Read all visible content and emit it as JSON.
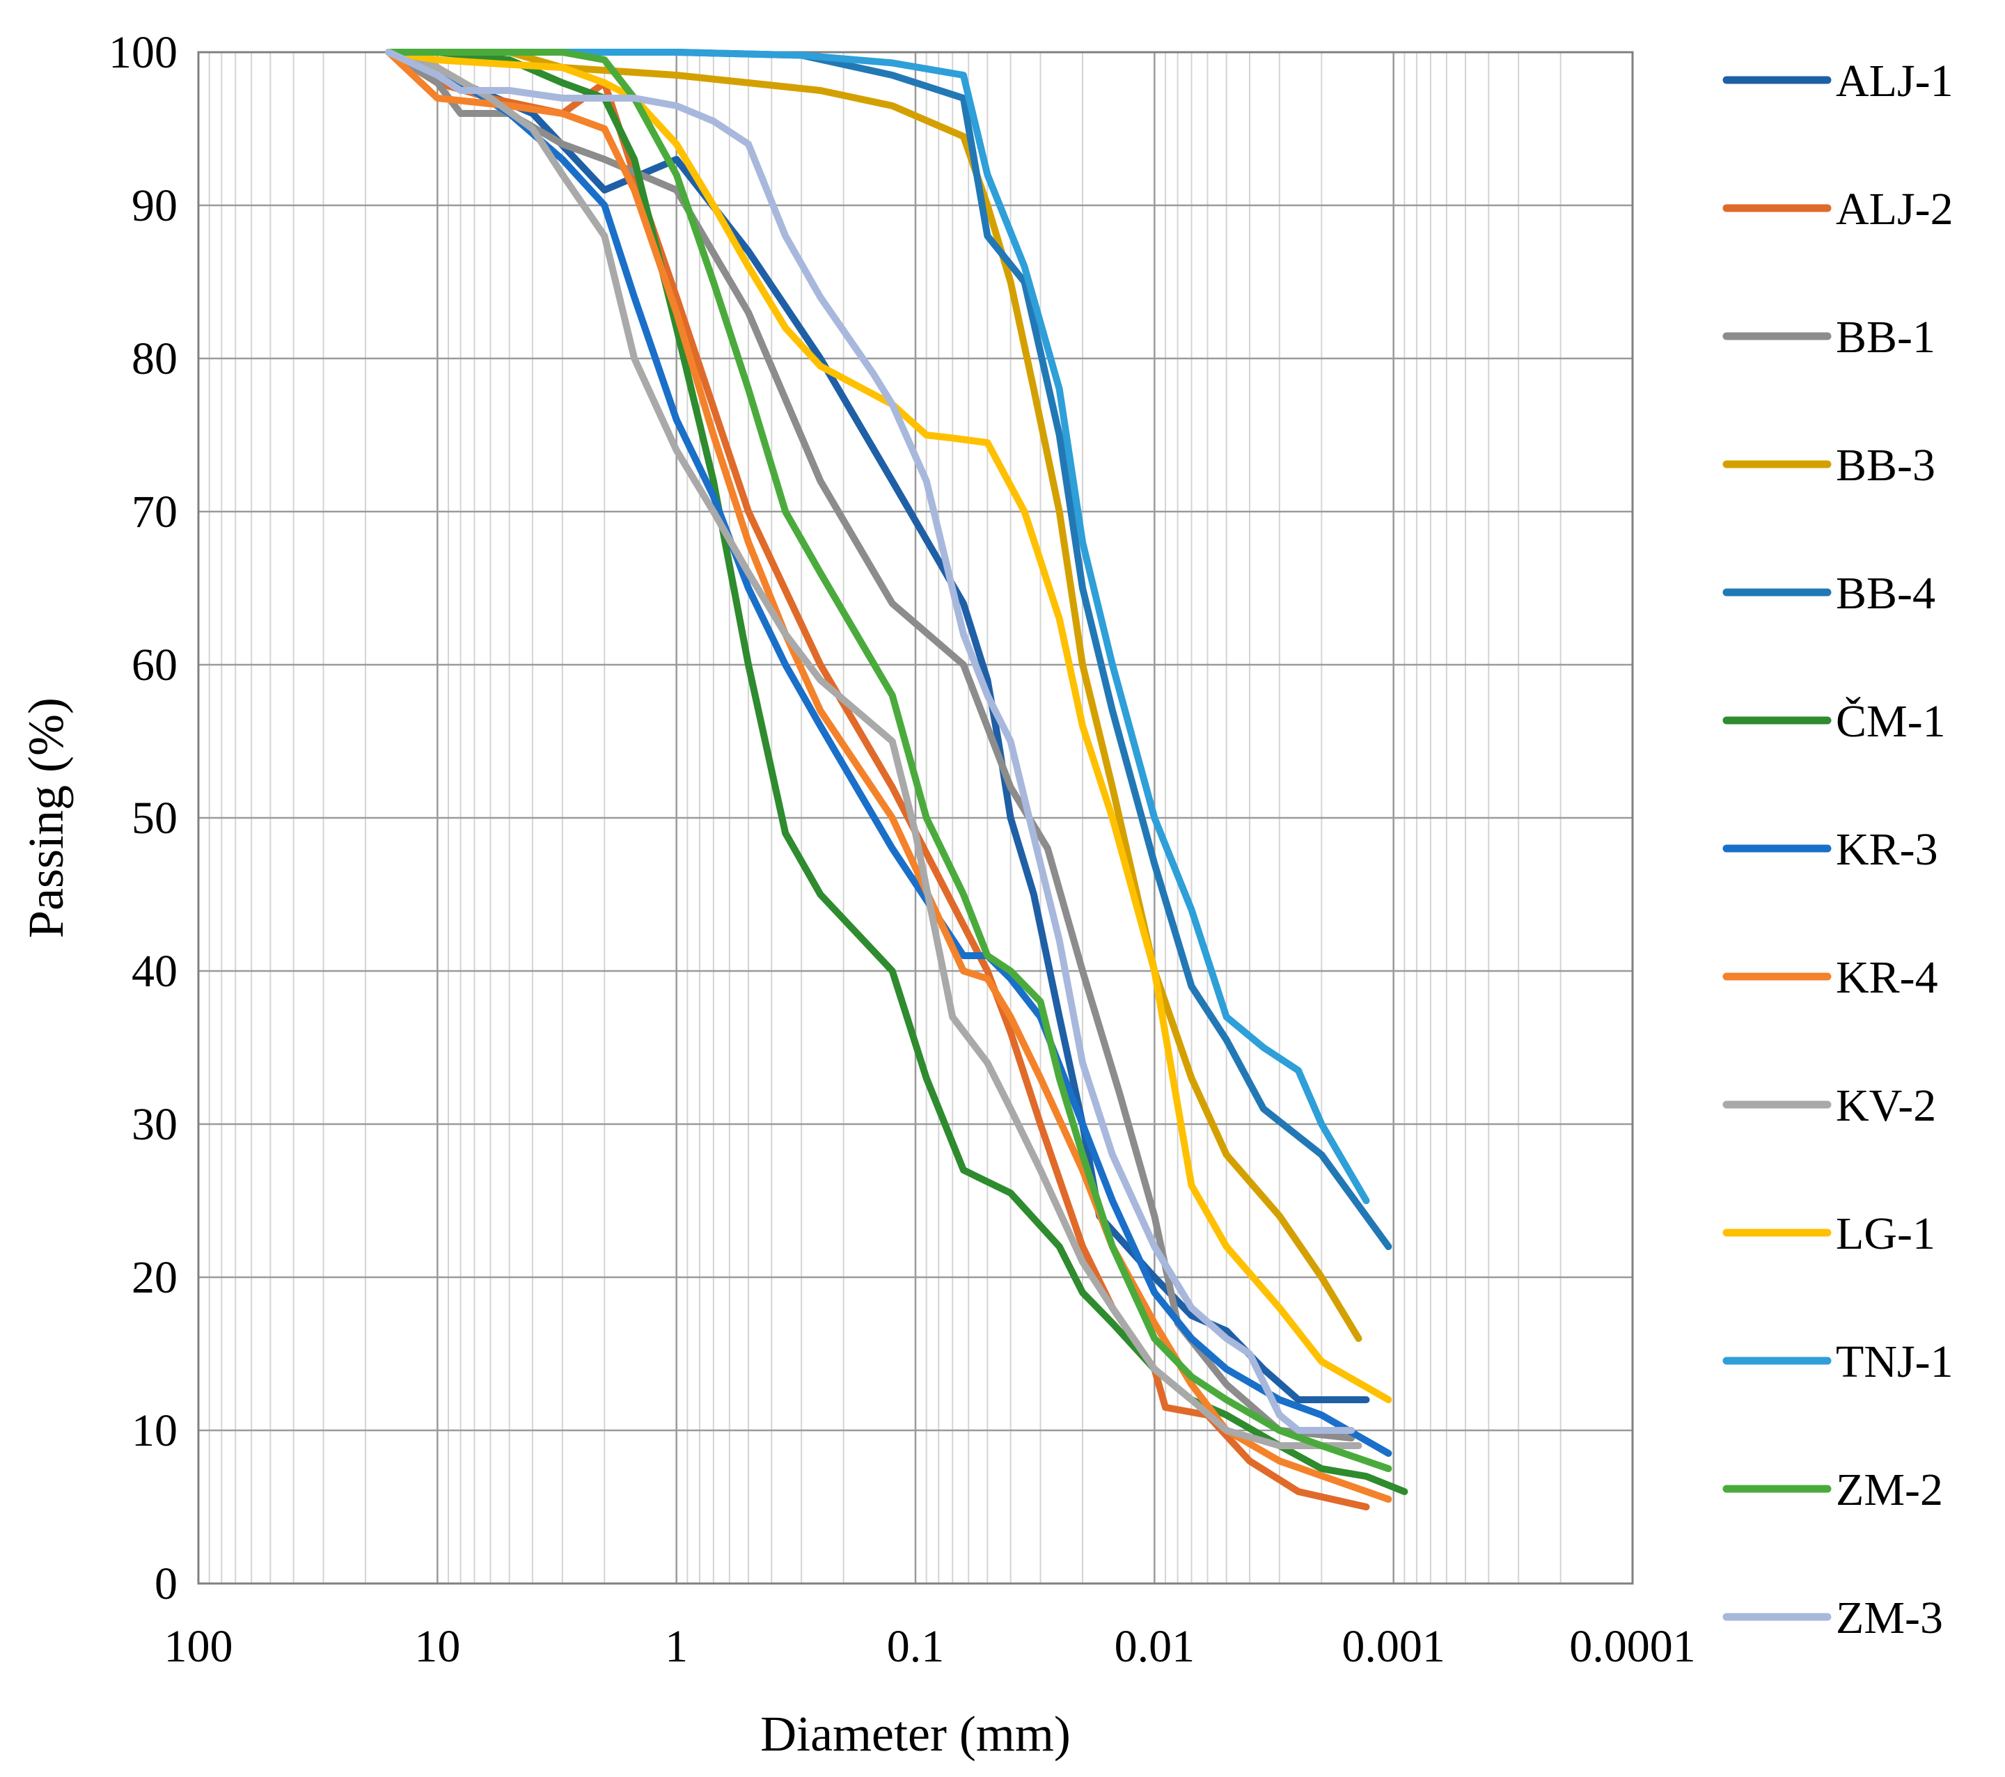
{
  "chart_data": {
    "type": "line",
    "title": "",
    "xlabel": "Diameter (mm)",
    "ylabel": "Passing (%)",
    "x_scale": "log",
    "x_reversed": true,
    "xlim": [
      100,
      0.0001
    ],
    "ylim": [
      0,
      100
    ],
    "x_ticks": [
      "100",
      "10",
      "1",
      "0.1",
      "0.01",
      "0.001",
      "0.0001"
    ],
    "y_ticks": [
      "0",
      "10",
      "20",
      "30",
      "40",
      "50",
      "60",
      "70",
      "80",
      "90",
      "100"
    ],
    "grid": true,
    "legend_position": "right",
    "series": [
      {
        "name": "ALJ-1",
        "color": "#1f5fa6",
        "points": [
          [
            16,
            100
          ],
          [
            10,
            99
          ],
          [
            8,
            98
          ],
          [
            4,
            96
          ],
          [
            2,
            91
          ],
          [
            1,
            93
          ],
          [
            0.5,
            87
          ],
          [
            0.25,
            80
          ],
          [
            0.125,
            72
          ],
          [
            0.063,
            64
          ],
          [
            0.05,
            59
          ],
          [
            0.045,
            55
          ],
          [
            0.04,
            50
          ],
          [
            0.032,
            45
          ],
          [
            0.025,
            37
          ],
          [
            0.02,
            30
          ],
          [
            0.017,
            24
          ],
          [
            0.01,
            20
          ],
          [
            0.007,
            17.5
          ],
          [
            0.005,
            16.5
          ],
          [
            0.0035,
            14
          ],
          [
            0.0025,
            12
          ],
          [
            0.0013,
            12
          ]
        ]
      },
      {
        "name": "ALJ-2",
        "color": "#e06a2a",
        "points": [
          [
            16,
            100
          ],
          [
            10,
            98
          ],
          [
            6,
            97
          ],
          [
            3,
            96
          ],
          [
            2,
            98
          ],
          [
            1.5,
            92
          ],
          [
            1,
            84
          ],
          [
            0.5,
            70
          ],
          [
            0.25,
            60
          ],
          [
            0.125,
            52
          ],
          [
            0.063,
            43
          ],
          [
            0.05,
            40
          ],
          [
            0.04,
            36
          ],
          [
            0.03,
            30
          ],
          [
            0.02,
            22
          ],
          [
            0.015,
            18
          ],
          [
            0.01,
            14
          ],
          [
            0.009,
            11.5
          ],
          [
            0.006,
            11
          ],
          [
            0.004,
            8
          ],
          [
            0.0025,
            6
          ],
          [
            0.0013,
            5
          ]
        ]
      },
      {
        "name": "BB-1",
        "color": "#8c8c8c",
        "points": [
          [
            16,
            100
          ],
          [
            10,
            98
          ],
          [
            8,
            96
          ],
          [
            5,
            96
          ],
          [
            3,
            94
          ],
          [
            2,
            93
          ],
          [
            1,
            91
          ],
          [
            0.5,
            83
          ],
          [
            0.25,
            72
          ],
          [
            0.125,
            64
          ],
          [
            0.063,
            60
          ],
          [
            0.04,
            52
          ],
          [
            0.028,
            48
          ],
          [
            0.02,
            40
          ],
          [
            0.014,
            32
          ],
          [
            0.01,
            24
          ],
          [
            0.008,
            17
          ],
          [
            0.005,
            13
          ],
          [
            0.003,
            10
          ],
          [
            0.0015,
            9.5
          ]
        ]
      },
      {
        "name": "BB-3",
        "color": "#d4a000",
        "points": [
          [
            16,
            100
          ],
          [
            5,
            100
          ],
          [
            3,
            99
          ],
          [
            1,
            98.5
          ],
          [
            0.5,
            98
          ],
          [
            0.25,
            97.5
          ],
          [
            0.125,
            96.5
          ],
          [
            0.063,
            94.5
          ],
          [
            0.05,
            90
          ],
          [
            0.04,
            85
          ],
          [
            0.032,
            78
          ],
          [
            0.025,
            70
          ],
          [
            0.02,
            60
          ],
          [
            0.015,
            52
          ],
          [
            0.01,
            40
          ],
          [
            0.007,
            33
          ],
          [
            0.005,
            28
          ],
          [
            0.003,
            24
          ],
          [
            0.002,
            20
          ],
          [
            0.0014,
            16
          ]
        ]
      },
      {
        "name": "BB-4",
        "color": "#2278b5",
        "points": [
          [
            16,
            100
          ],
          [
            5,
            100
          ],
          [
            1,
            100
          ],
          [
            0.3,
            99.8
          ],
          [
            0.125,
            98.5
          ],
          [
            0.063,
            97
          ],
          [
            0.05,
            88
          ],
          [
            0.035,
            85
          ],
          [
            0.025,
            75
          ],
          [
            0.02,
            65
          ],
          [
            0.015,
            57
          ],
          [
            0.01,
            47
          ],
          [
            0.007,
            39
          ],
          [
            0.005,
            35.5
          ],
          [
            0.0035,
            31
          ],
          [
            0.002,
            28
          ],
          [
            0.00105,
            22
          ]
        ]
      },
      {
        "name": "ČM-1",
        "color": "#2e8b2e",
        "points": [
          [
            16,
            100
          ],
          [
            10,
            100
          ],
          [
            5,
            99.5
          ],
          [
            3,
            98
          ],
          [
            2,
            97
          ],
          [
            1.5,
            93
          ],
          [
            1,
            82
          ],
          [
            0.7,
            72
          ],
          [
            0.5,
            60
          ],
          [
            0.35,
            49
          ],
          [
            0.25,
            45
          ],
          [
            0.125,
            40
          ],
          [
            0.09,
            33
          ],
          [
            0.063,
            27
          ],
          [
            0.04,
            25.5
          ],
          [
            0.025,
            22
          ],
          [
            0.02,
            19
          ],
          [
            0.015,
            17
          ],
          [
            0.01,
            14
          ],
          [
            0.007,
            12
          ],
          [
            0.005,
            11
          ],
          [
            0.003,
            9
          ],
          [
            0.002,
            7.5
          ],
          [
            0.0013,
            7
          ],
          [
            0.0009,
            6
          ]
        ]
      },
      {
        "name": "KR-3",
        "color": "#1a6fc9",
        "points": [
          [
            16,
            100
          ],
          [
            8,
            98
          ],
          [
            5,
            96
          ],
          [
            3,
            93
          ],
          [
            2,
            90
          ],
          [
            1.5,
            84
          ],
          [
            1,
            76
          ],
          [
            0.7,
            71
          ],
          [
            0.5,
            65
          ],
          [
            0.35,
            60
          ],
          [
            0.25,
            56
          ],
          [
            0.125,
            48
          ],
          [
            0.063,
            41
          ],
          [
            0.05,
            41
          ],
          [
            0.04,
            39.5
          ],
          [
            0.03,
            37
          ],
          [
            0.02,
            30
          ],
          [
            0.015,
            25
          ],
          [
            0.01,
            19
          ],
          [
            0.007,
            16
          ],
          [
            0.005,
            14
          ],
          [
            0.003,
            12
          ],
          [
            0.002,
            11
          ],
          [
            0.00105,
            8.5
          ]
        ]
      },
      {
        "name": "KR-4",
        "color": "#f4822a",
        "points": [
          [
            16,
            100
          ],
          [
            10,
            97
          ],
          [
            5,
            96.5
          ],
          [
            3,
            96
          ],
          [
            2,
            95
          ],
          [
            1.5,
            91
          ],
          [
            1,
            83
          ],
          [
            0.7,
            75
          ],
          [
            0.5,
            68
          ],
          [
            0.35,
            62
          ],
          [
            0.25,
            57
          ],
          [
            0.125,
            50
          ],
          [
            0.063,
            40
          ],
          [
            0.05,
            39.5
          ],
          [
            0.04,
            37
          ],
          [
            0.03,
            33
          ],
          [
            0.02,
            27
          ],
          [
            0.015,
            22
          ],
          [
            0.01,
            17
          ],
          [
            0.007,
            13
          ],
          [
            0.005,
            10
          ],
          [
            0.003,
            8
          ],
          [
            0.00105,
            5.5
          ]
        ]
      },
      {
        "name": "KV-2",
        "color": "#a9a9a9",
        "points": [
          [
            16,
            100
          ],
          [
            10,
            99
          ],
          [
            6,
            97
          ],
          [
            4,
            95
          ],
          [
            3,
            92
          ],
          [
            2,
            88
          ],
          [
            1.5,
            80
          ],
          [
            1,
            74
          ],
          [
            0.7,
            70
          ],
          [
            0.5,
            66
          ],
          [
            0.35,
            62
          ],
          [
            0.25,
            59
          ],
          [
            0.125,
            55
          ],
          [
            0.1,
            49
          ],
          [
            0.07,
            37
          ],
          [
            0.05,
            34
          ],
          [
            0.04,
            31
          ],
          [
            0.03,
            27
          ],
          [
            0.02,
            21
          ],
          [
            0.015,
            18
          ],
          [
            0.01,
            14
          ],
          [
            0.007,
            12
          ],
          [
            0.005,
            10
          ],
          [
            0.003,
            9
          ],
          [
            0.0014,
            9
          ]
        ]
      },
      {
        "name": "LG-1",
        "color": "#ffc000",
        "points": [
          [
            16,
            100
          ],
          [
            10,
            99.5
          ],
          [
            5,
            99.2
          ],
          [
            3,
            99
          ],
          [
            2,
            98
          ],
          [
            1.5,
            97
          ],
          [
            1,
            94
          ],
          [
            0.7,
            90
          ],
          [
            0.5,
            86
          ],
          [
            0.35,
            82
          ],
          [
            0.25,
            79.5
          ],
          [
            0.125,
            77
          ],
          [
            0.09,
            75
          ],
          [
            0.07,
            74.8
          ],
          [
            0.05,
            74.5
          ],
          [
            0.035,
            70
          ],
          [
            0.025,
            63
          ],
          [
            0.02,
            56
          ],
          [
            0.015,
            50
          ],
          [
            0.01,
            40
          ],
          [
            0.007,
            26
          ],
          [
            0.005,
            22
          ],
          [
            0.003,
            18
          ],
          [
            0.002,
            14.5
          ],
          [
            0.00105,
            12
          ]
        ]
      },
      {
        "name": "TNJ-1",
        "color": "#2e9fd8",
        "points": [
          [
            16,
            100
          ],
          [
            5,
            100
          ],
          [
            1,
            100
          ],
          [
            0.3,
            99.8
          ],
          [
            0.125,
            99.3
          ],
          [
            0.063,
            98.5
          ],
          [
            0.05,
            92
          ],
          [
            0.035,
            86
          ],
          [
            0.025,
            78
          ],
          [
            0.02,
            68
          ],
          [
            0.015,
            60
          ],
          [
            0.01,
            50
          ],
          [
            0.007,
            44
          ],
          [
            0.005,
            37
          ],
          [
            0.0035,
            35
          ],
          [
            0.0025,
            33.5
          ],
          [
            0.002,
            30
          ],
          [
            0.0013,
            25
          ]
        ]
      },
      {
        "name": "ZM-2",
        "color": "#4aab3c",
        "points": [
          [
            16,
            100
          ],
          [
            10,
            100
          ],
          [
            5,
            100
          ],
          [
            3,
            100
          ],
          [
            2,
            99.5
          ],
          [
            1.5,
            97
          ],
          [
            1,
            92
          ],
          [
            0.7,
            85
          ],
          [
            0.5,
            78
          ],
          [
            0.35,
            70
          ],
          [
            0.25,
            66
          ],
          [
            0.125,
            58
          ],
          [
            0.09,
            50
          ],
          [
            0.063,
            45
          ],
          [
            0.05,
            41
          ],
          [
            0.04,
            40
          ],
          [
            0.03,
            38
          ],
          [
            0.025,
            33
          ],
          [
            0.02,
            28
          ],
          [
            0.015,
            22
          ],
          [
            0.01,
            16
          ],
          [
            0.007,
            13.5
          ],
          [
            0.005,
            12
          ],
          [
            0.003,
            10
          ],
          [
            0.002,
            9
          ],
          [
            0.00105,
            7.5
          ]
        ]
      },
      {
        "name": "ZM-3",
        "color": "#a8b8dc",
        "points": [
          [
            16,
            100
          ],
          [
            10,
            98.5
          ],
          [
            8,
            97.5
          ],
          [
            5,
            97.5
          ],
          [
            3,
            97
          ],
          [
            2,
            97
          ],
          [
            1.5,
            97
          ],
          [
            1,
            96.5
          ],
          [
            0.7,
            95.5
          ],
          [
            0.5,
            94
          ],
          [
            0.35,
            88
          ],
          [
            0.25,
            84
          ],
          [
            0.15,
            79
          ],
          [
            0.125,
            77
          ],
          [
            0.09,
            72
          ],
          [
            0.063,
            62
          ],
          [
            0.05,
            58
          ],
          [
            0.04,
            55
          ],
          [
            0.03,
            47
          ],
          [
            0.025,
            42
          ],
          [
            0.02,
            34
          ],
          [
            0.015,
            28
          ],
          [
            0.01,
            22
          ],
          [
            0.007,
            18
          ],
          [
            0.005,
            16
          ],
          [
            0.004,
            15
          ],
          [
            0.003,
            11
          ],
          [
            0.0025,
            10
          ],
          [
            0.0015,
            10
          ]
        ]
      }
    ]
  }
}
